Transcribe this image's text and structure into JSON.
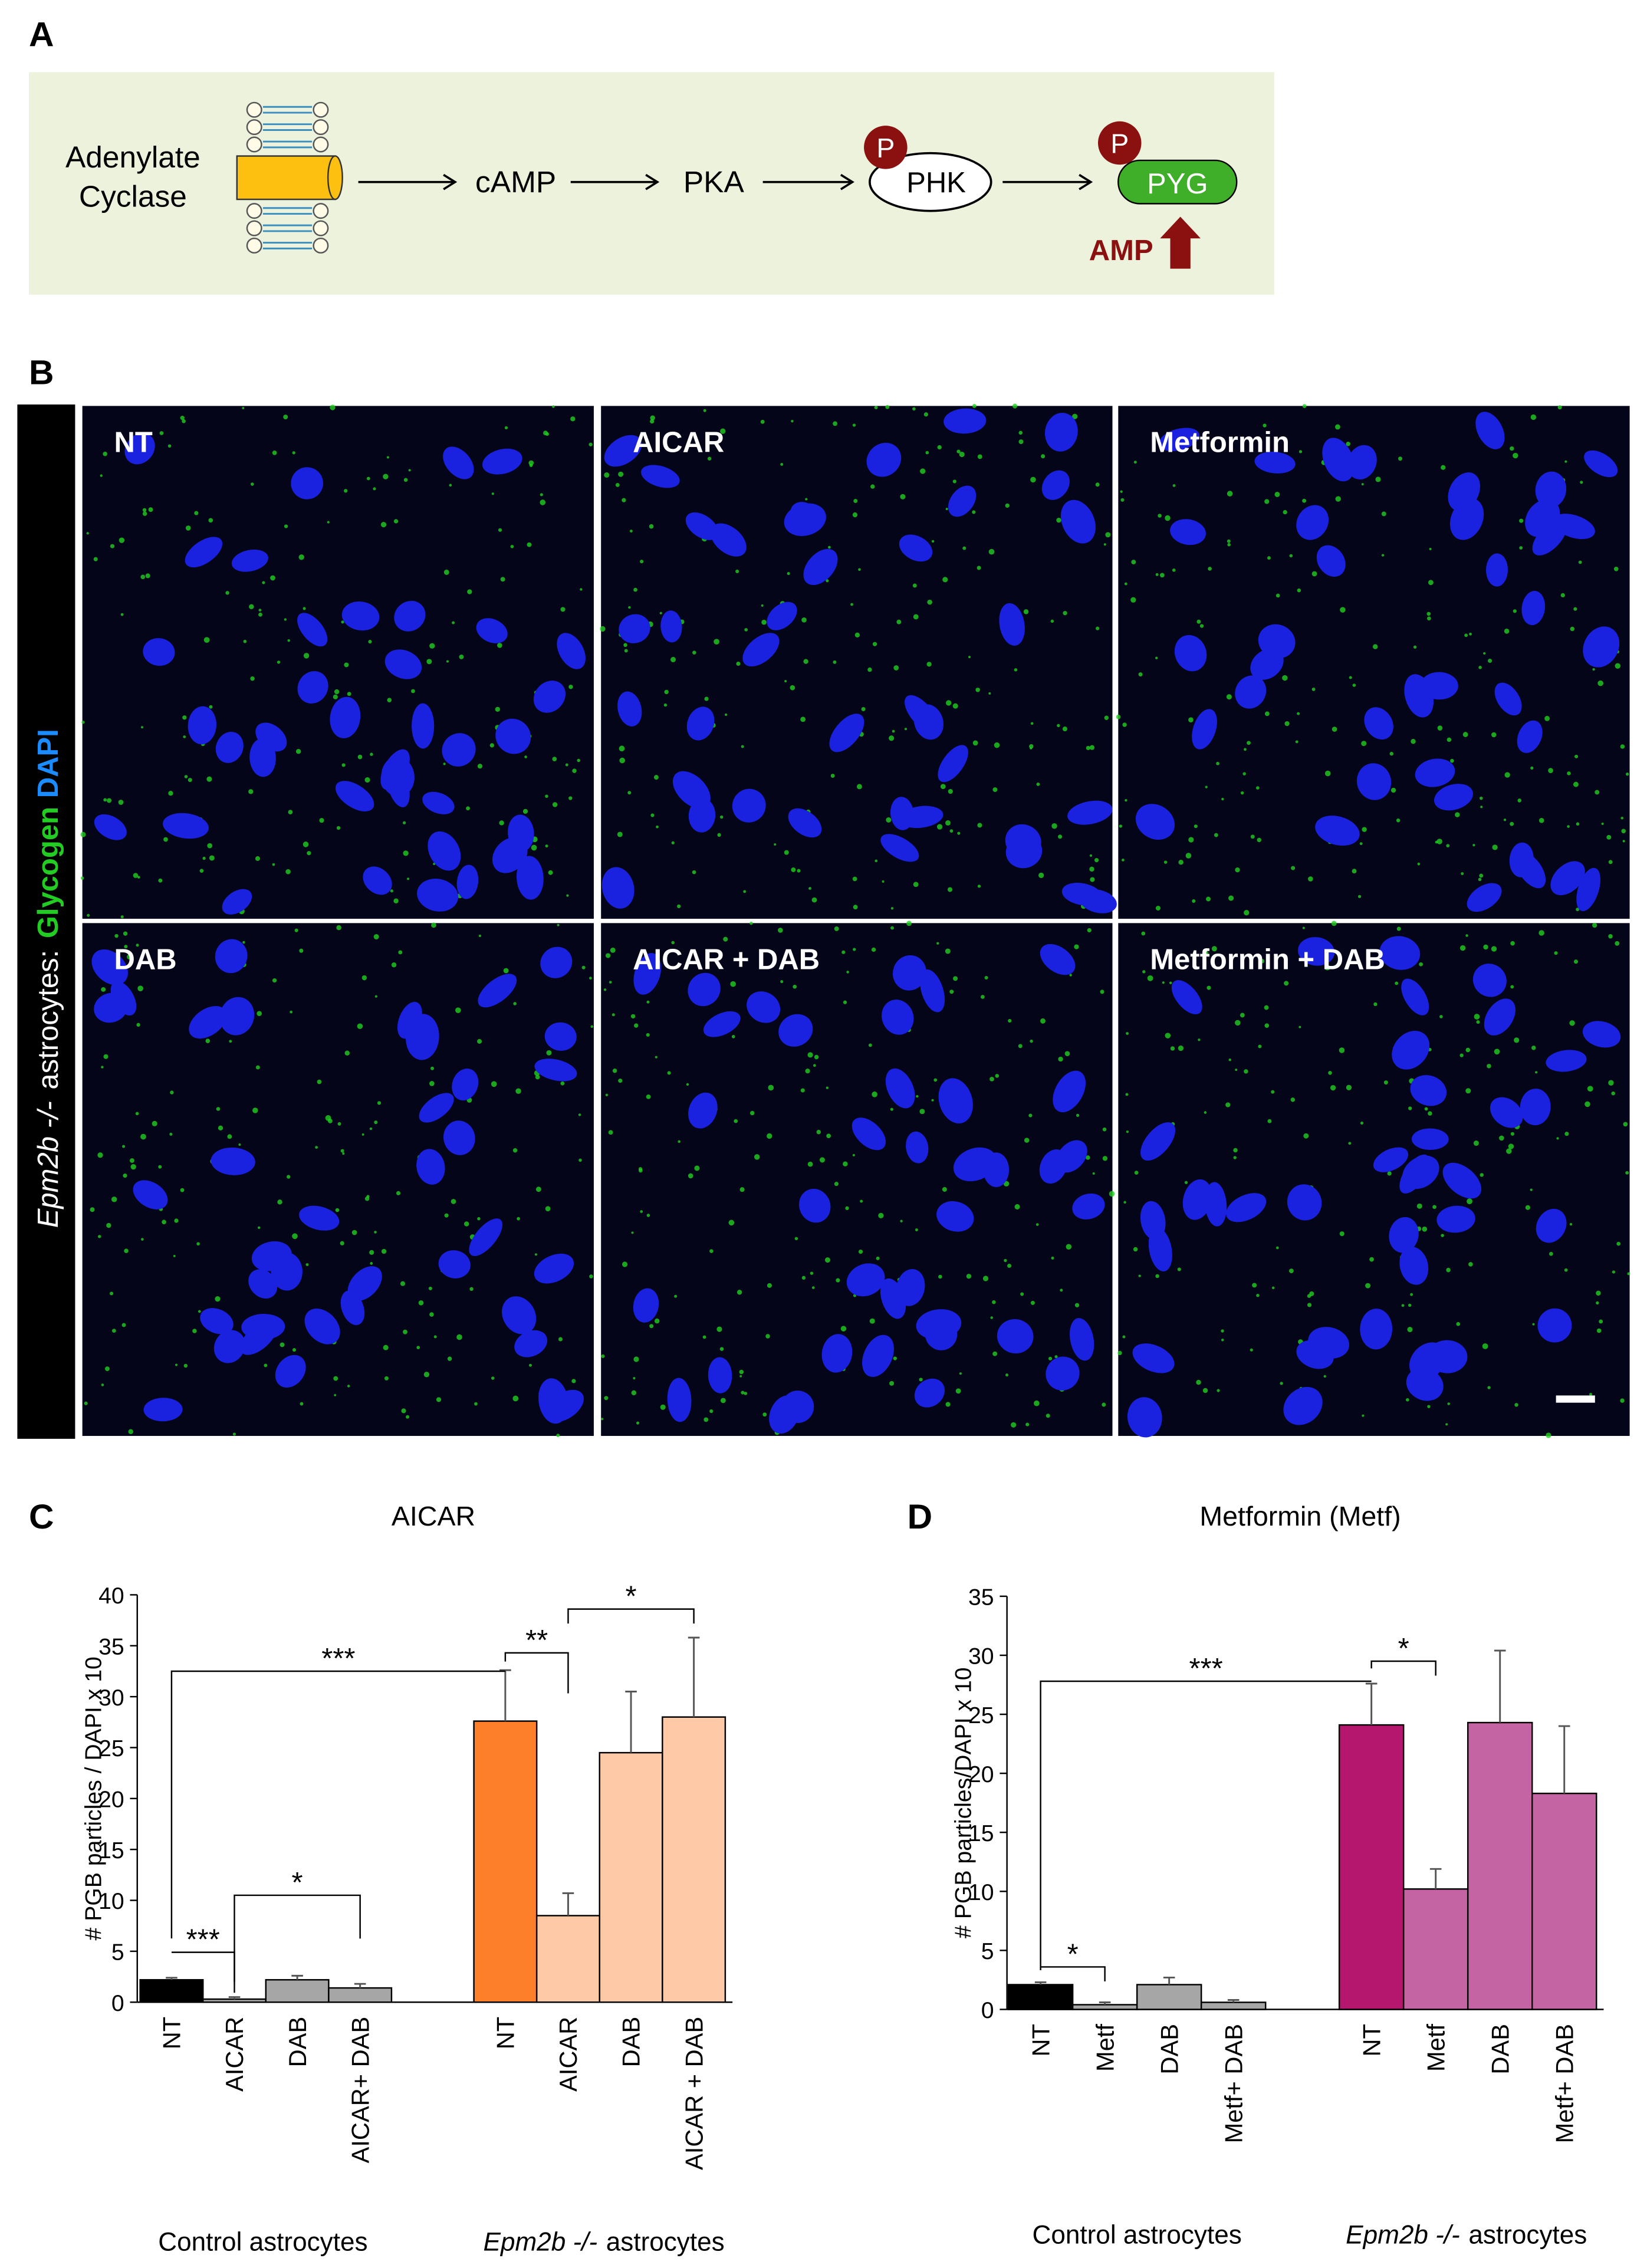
{
  "panel_labels": [
    "A",
    "B",
    "C",
    "D"
  ],
  "diagram": {
    "enzyme": [
      "Adenylate",
      "Cyclase"
    ],
    "nodes": [
      "cAMP",
      "PKA",
      "PHK",
      "PYG"
    ],
    "phospho": [
      "P",
      "P"
    ],
    "activator": "AMP"
  },
  "micrograph": {
    "side_label": {
      "genotype": "Epm2b -/-",
      "cells": "astrocytes:",
      "stain1": "Glycogen",
      "stain2": "DAPI"
    },
    "panels": [
      "NT",
      "AICAR",
      "Metformin",
      "DAB",
      "AICAR + DAB",
      "Metformin + DAB"
    ]
  },
  "chart_data": [
    {
      "type": "bar",
      "title": "AICAR",
      "ylabel": "# PGB  particles / DAPI x 10",
      "categories": [
        "NT",
        "AICAR",
        "DAB",
        "AICAR+ DAB",
        "NT",
        "AICAR",
        "DAB",
        "AICAR + DAB"
      ],
      "values": [
        2.2,
        0.3,
        2.2,
        1.4,
        27.6,
        8.5,
        24.5,
        28.0
      ],
      "errors": [
        0.2,
        0.2,
        0.4,
        0.4,
        5.0,
        2.2,
        6.0,
        7.8
      ],
      "colors": [
        "#000000",
        "#a6a6a6",
        "#a6a6a6",
        "#a6a6a6",
        "#fd7f2a",
        "#fdc9a6",
        "#fdc9a6",
        "#fdc9a6"
      ],
      "ylim": [
        0,
        40
      ],
      "yticks": [
        0,
        5,
        10,
        15,
        20,
        25,
        30,
        35,
        40
      ],
      "groups": [
        "Control astrocytes",
        {
          "italic": "Epm2b -/-",
          "rest": "astrocytes"
        }
      ],
      "annotations": [
        "***",
        "**",
        "*",
        "***",
        "*"
      ]
    },
    {
      "type": "bar",
      "title": "Metformin (Metf)",
      "ylabel": "# PGB particles/DAPI x 10",
      "categories": [
        "NT",
        "Metf",
        "DAB",
        "Metf+ DAB",
        "NT",
        "Metf",
        "DAB",
        "Metf+ DAB"
      ],
      "values": [
        2.1,
        0.4,
        2.1,
        0.6,
        24.1,
        10.2,
        24.3,
        18.3
      ],
      "errors": [
        0.2,
        0.2,
        0.6,
        0.2,
        3.5,
        1.7,
        6.1,
        5.7
      ],
      "colors": [
        "#000000",
        "#a6a6a6",
        "#a6a6a6",
        "#a6a6a6",
        "#b5176e",
        "#c464a2",
        "#c464a2",
        "#c464a2"
      ],
      "ylim": [
        0,
        35
      ],
      "yticks": [
        0,
        5,
        10,
        15,
        20,
        25,
        30,
        35
      ],
      "groups": [
        "Control astrocytes",
        {
          "italic": "Epm2b -/-",
          "rest": "astrocytes"
        }
      ],
      "annotations": [
        "***",
        "*",
        "*"
      ]
    }
  ]
}
